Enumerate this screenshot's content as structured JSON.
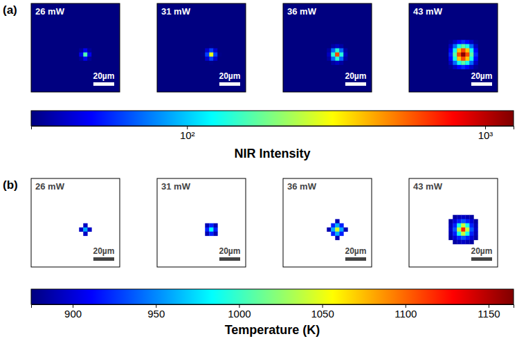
{
  "chart_data": [
    {
      "type": "heatmap",
      "panel_label": "(a)",
      "log": true,
      "tick_labels": false,
      "xlim": [
        0,
        85
      ],
      "ylim": [
        0,
        85
      ],
      "x": [
        40,
        44,
        48,
        52,
        56,
        60,
        64
      ],
      "y": [
        37,
        41,
        45,
        49,
        53,
        57,
        61
      ],
      "scale_bar": {
        "length": 20,
        "label": "20µm"
      },
      "colorbar": {
        "label": "NIR Intensity",
        "range": [
          30,
          1245
        ],
        "ticks": [
          {
            "value": 100,
            "label": "10²"
          },
          {
            "value": 1000,
            "label": "10³"
          }
        ]
      },
      "panels": [
        {
          "title": "26 mW",
          "cells": [
            [
              30,
              30,
              30,
              30,
              30,
              30,
              30
            ],
            [
              30,
              30,
              30,
              30,
              30,
              30,
              30
            ],
            [
              30,
              30,
              33,
              45,
              33,
              30,
              30
            ],
            [
              30,
              30,
              45,
              160,
              45,
              30,
              30
            ],
            [
              30,
              30,
              33,
              45,
              33,
              30,
              30
            ],
            [
              30,
              30,
              30,
              30,
              30,
              30,
              30
            ],
            [
              30,
              30,
              30,
              30,
              30,
              30,
              30
            ]
          ]
        },
        {
          "title": "31 mW",
          "cells": [
            [
              30,
              30,
              30,
              30,
              30,
              30,
              30
            ],
            [
              30,
              30,
              30,
              31,
              30,
              30,
              30
            ],
            [
              30,
              30,
              40,
              60,
              40,
              30,
              30
            ],
            [
              30,
              31,
              60,
              280,
              60,
              31,
              30
            ],
            [
              30,
              30,
              40,
              60,
              40,
              30,
              30
            ],
            [
              30,
              30,
              30,
              31,
              30,
              30,
              30
            ],
            [
              30,
              30,
              30,
              30,
              30,
              30,
              30
            ]
          ]
        },
        {
          "title": "36 mW",
          "cells": [
            [
              30,
              30,
              30,
              30,
              30,
              30,
              30
            ],
            [
              30,
              30,
              34,
              38,
              34,
              30,
              30
            ],
            [
              30,
              34,
              70,
              140,
              70,
              34,
              30
            ],
            [
              30,
              38,
              140,
              600,
              140,
              38,
              30
            ],
            [
              30,
              34,
              70,
              140,
              70,
              34,
              30
            ],
            [
              30,
              30,
              34,
              38,
              34,
              30,
              30
            ],
            [
              30,
              30,
              30,
              30,
              30,
              30,
              30
            ]
          ]
        },
        {
          "title": "43 mW",
          "cells": [
            [
              32,
              38,
              48,
              55,
              48,
              38,
              32
            ],
            [
              38,
              70,
              130,
              170,
              130,
              70,
              38
            ],
            [
              48,
              130,
              380,
              600,
              380,
              130,
              48
            ],
            [
              55,
              170,
              600,
              1200,
              600,
              170,
              55
            ],
            [
              48,
              130,
              380,
              600,
              380,
              130,
              48
            ],
            [
              38,
              70,
              130,
              170,
              130,
              70,
              38
            ],
            [
              32,
              38,
              48,
              55,
              48,
              38,
              32
            ]
          ]
        }
      ]
    },
    {
      "type": "heatmap",
      "panel_label": "(b)",
      "tick_labels": false,
      "xlim": [
        0,
        85
      ],
      "ylim": [
        0,
        85
      ],
      "x": [
        40,
        44,
        48,
        52,
        56,
        60,
        64
      ],
      "y": [
        37,
        41,
        45,
        49,
        53,
        57,
        61
      ],
      "scale_bar": {
        "length": 20,
        "label": "20µm"
      },
      "colorbar": {
        "label": "Temperature (K)",
        "range": [
          875,
          1165
        ],
        "ticks": [
          900,
          950,
          1000,
          1050,
          1100,
          1150
        ]
      },
      "panels": [
        {
          "title": "26 mW",
          "cells": [
            [
              null,
              null,
              null,
              null,
              null,
              null,
              null
            ],
            [
              null,
              null,
              null,
              null,
              null,
              null,
              null
            ],
            [
              null,
              null,
              null,
              895,
              null,
              null,
              null
            ],
            [
              null,
              null,
              895,
              960,
              895,
              null,
              null
            ],
            [
              null,
              null,
              null,
              895,
              null,
              null,
              null
            ],
            [
              null,
              null,
              null,
              null,
              null,
              null,
              null
            ],
            [
              null,
              null,
              null,
              null,
              null,
              null,
              null
            ]
          ]
        },
        {
          "title": "31 mW",
          "cells": [
            [
              null,
              null,
              null,
              null,
              null,
              null,
              null
            ],
            [
              null,
              null,
              null,
              null,
              null,
              null,
              null
            ],
            [
              null,
              null,
              890,
              920,
              890,
              null,
              null
            ],
            [
              null,
              null,
              920,
              985,
              920,
              null,
              null
            ],
            [
              null,
              null,
              890,
              920,
              890,
              null,
              null
            ],
            [
              null,
              null,
              null,
              null,
              null,
              null,
              null
            ],
            [
              null,
              null,
              null,
              null,
              null,
              null,
              null
            ]
          ]
        },
        {
          "title": "36 mW",
          "cells": [
            [
              null,
              null,
              null,
              null,
              null,
              null,
              null
            ],
            [
              null,
              null,
              null,
              890,
              null,
              null,
              null
            ],
            [
              null,
              null,
              920,
              960,
              920,
              null,
              null
            ],
            [
              null,
              890,
              960,
              1045,
              960,
              890,
              null
            ],
            [
              null,
              null,
              920,
              960,
              920,
              null,
              null
            ],
            [
              null,
              null,
              null,
              890,
              null,
              null,
              null
            ],
            [
              null,
              null,
              null,
              null,
              null,
              null,
              null
            ]
          ]
        },
        {
          "title": "43 mW",
          "cells": [
            [
              null,
              885,
              890,
              895,
              890,
              885,
              null
            ],
            [
              885,
              900,
              920,
              935,
              920,
              900,
              885
            ],
            [
              890,
              920,
              990,
              1040,
              990,
              920,
              890
            ],
            [
              895,
              935,
              1040,
              1120,
              1040,
              935,
              895
            ],
            [
              890,
              920,
              990,
              1040,
              990,
              920,
              890
            ],
            [
              885,
              900,
              920,
              935,
              920,
              900,
              885
            ],
            [
              null,
              885,
              890,
              895,
              890,
              885,
              null
            ]
          ]
        }
      ]
    }
  ]
}
